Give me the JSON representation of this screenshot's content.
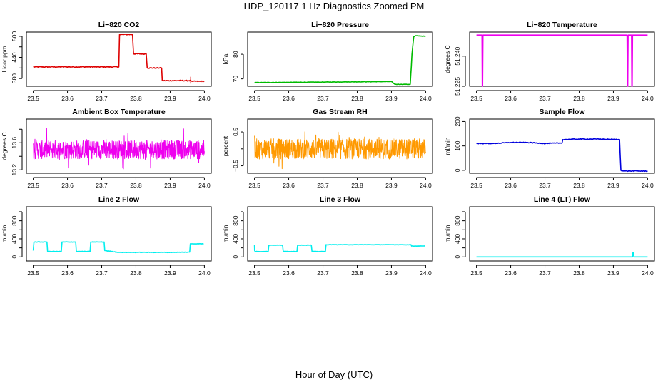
{
  "page": {
    "title": "HDP_120117  1 Hz Diagnostics Zoomed PM",
    "xlabel": "Hour of Day (UTC)"
  },
  "chart_data": [
    {
      "type": "line",
      "title": "Li−820 CO2",
      "ylabel": "Licor ppm",
      "color": "#dd0000",
      "xlim": [
        23.5,
        24.0
      ],
      "ylim": [
        358,
        512
      ],
      "xticks": [
        23.5,
        23.6,
        23.7,
        23.8,
        23.9,
        24.0
      ],
      "xtick_labels": [
        "23.5",
        "23.6",
        "23.7",
        "23.8",
        "23.9",
        "24.0"
      ],
      "yticks": [
        380,
        440,
        500
      ],
      "ytick_labels": [
        "380",
        "440",
        "500"
      ],
      "yticks_minor": [
        410,
        470
      ],
      "series": [
        {
          "x": [
            23.5,
            23.75,
            23.752,
            23.79,
            23.793,
            23.83,
            23.833,
            23.875,
            23.877,
            23.96,
            23.965,
            24.0
          ],
          "y": [
            413,
            413,
            505,
            505,
            450,
            450,
            410,
            410,
            374,
            374,
            372,
            372
          ],
          "noise": 1.2,
          "spikes": [
            {
              "x": 23.96,
              "y": 385
            }
          ]
        }
      ]
    },
    {
      "type": "line",
      "title": "Li−820 Pressure",
      "ylabel": "kPa",
      "color": "#00bb00",
      "xlim": [
        23.5,
        24.0
      ],
      "ylim": [
        67,
        89
      ],
      "xticks": [
        23.5,
        23.6,
        23.7,
        23.8,
        23.9,
        24.0
      ],
      "xtick_labels": [
        "23.5",
        "23.6",
        "23.7",
        "23.8",
        "23.9",
        "24.0"
      ],
      "yticks": [
        70,
        80
      ],
      "ytick_labels": [
        "70",
        "80"
      ],
      "series": [
        {
          "x": [
            23.5,
            23.9,
            23.91,
            23.955,
            23.958,
            23.96,
            23.965,
            23.97,
            24.0
          ],
          "y": [
            68.5,
            68.9,
            67.8,
            67.8,
            75,
            80,
            87,
            87.5,
            87.3
          ],
          "noise": 0.08
        }
      ]
    },
    {
      "type": "line",
      "title": "Li−820 Temperature",
      "ylabel": "degrees C",
      "color": "#ee00ee",
      "xlim": [
        23.5,
        24.0
      ],
      "ylim": [
        51.225,
        51.252
      ],
      "xticks": [
        23.5,
        23.6,
        23.7,
        23.8,
        23.9,
        24.0
      ],
      "xtick_labels": [
        "23.5",
        "23.6",
        "23.7",
        "23.8",
        "23.9",
        "24.0"
      ],
      "yticks": [
        51.225,
        51.24
      ],
      "ytick_labels": [
        "51.225",
        "51.240"
      ],
      "series": [
        {
          "x": [
            23.5,
            23.516,
            23.517,
            23.518,
            23.519,
            23.94,
            23.941,
            23.942,
            23.943,
            23.953,
            23.954,
            23.955,
            23.956,
            24.0
          ],
          "y": [
            51.2505,
            51.2505,
            51.225,
            51.225,
            51.2505,
            51.2505,
            51.225,
            51.225,
            51.2505,
            51.2505,
            51.225,
            51.225,
            51.2505,
            51.2505
          ],
          "noise": 0
        }
      ]
    },
    {
      "type": "line",
      "title": "Ambient Box Temperature",
      "ylabel": "degrees C",
      "color": "#ee00ee",
      "xlim": [
        23.5,
        24.0
      ],
      "ylim": [
        13.15,
        13.95
      ],
      "xticks": [
        23.5,
        23.6,
        23.7,
        23.8,
        23.9,
        24.0
      ],
      "xtick_labels": [
        "23.5",
        "23.6",
        "23.7",
        "23.8",
        "23.9",
        "24.0"
      ],
      "yticks": [
        13.2,
        13.6
      ],
      "ytick_labels": [
        "13.2",
        "13.6"
      ],
      "yticks_minor": [
        13.4,
        13.8
      ],
      "series": [
        {
          "x": [
            23.5,
            24.0
          ],
          "y": [
            13.5,
            13.5
          ],
          "noise": 0.14,
          "dense": true
        }
      ]
    },
    {
      "type": "line",
      "title": "Gas Stream RH",
      "ylabel": "percent",
      "color": "#ff9900",
      "xlim": [
        23.5,
        24.0
      ],
      "ylim": [
        -0.72,
        0.88
      ],
      "xticks": [
        23.5,
        23.6,
        23.7,
        23.8,
        23.9,
        24.0
      ],
      "xtick_labels": [
        "23.5",
        "23.6",
        "23.7",
        "23.8",
        "23.9",
        "24.0"
      ],
      "yticks": [
        -0.5,
        0.5
      ],
      "ytick_labels": [
        "−0.5",
        "0.5"
      ],
      "yticks_minor": [
        0.0
      ],
      "series": [
        {
          "x": [
            23.5,
            24.0
          ],
          "y": [
            0.0,
            0.0
          ],
          "noise": 0.3,
          "dense": true
        }
      ]
    },
    {
      "type": "line",
      "title": "Sample Flow",
      "ylabel": "ml/min",
      "color": "#0000dd",
      "xlim": [
        23.5,
        24.0
      ],
      "ylim": [
        -12,
        210
      ],
      "xticks": [
        23.5,
        23.6,
        23.7,
        23.8,
        23.9,
        24.0
      ],
      "xtick_labels": [
        "23.5",
        "23.6",
        "23.7",
        "23.8",
        "23.9",
        "24.0"
      ],
      "yticks": [
        0,
        100,
        200
      ],
      "ytick_labels": [
        "0",
        "100",
        "200"
      ],
      "series": [
        {
          "x": [
            23.5,
            23.55,
            23.6,
            23.65,
            23.7,
            23.75,
            23.752,
            23.8,
            23.85,
            23.918,
            23.922,
            23.93,
            24.0
          ],
          "y": [
            110,
            110,
            114,
            114,
            110,
            112,
            126,
            128,
            128,
            126,
            0,
            -3,
            -3
          ],
          "noise": 1.5
        }
      ]
    },
    {
      "type": "line",
      "title": "Line 2 Flow",
      "ylabel": "ml/min",
      "color": "#00eeee",
      "xlim": [
        23.5,
        24.0
      ],
      "ylim": [
        -90,
        1110
      ],
      "xticks": [
        23.5,
        23.6,
        23.7,
        23.8,
        23.9,
        24.0
      ],
      "xtick_labels": [
        "23.5",
        "23.6",
        "23.7",
        "23.8",
        "23.9",
        "24.0"
      ],
      "yticks": [
        0,
        400,
        800
      ],
      "ytick_labels": [
        "0",
        "400",
        "800"
      ],
      "yticks_minor": [
        200,
        600,
        1000
      ],
      "series": [
        {
          "x": [
            23.5,
            23.502,
            23.54,
            23.542,
            23.582,
            23.584,
            23.624,
            23.626,
            23.666,
            23.668,
            23.707,
            23.709,
            23.75,
            23.8,
            23.85,
            23.9,
            23.957,
            23.959,
            23.998
          ],
          "y": [
            140,
            330,
            330,
            120,
            120,
            330,
            330,
            120,
            120,
            330,
            330,
            140,
            100,
            100,
            100,
            100,
            105,
            290,
            290
          ],
          "noise": 5
        }
      ]
    },
    {
      "type": "line",
      "title": "Line 3 Flow",
      "ylabel": "ml/min",
      "color": "#00eeee",
      "xlim": [
        23.5,
        24.0
      ],
      "ylim": [
        -90,
        1110
      ],
      "xticks": [
        23.5,
        23.6,
        23.7,
        23.8,
        23.9,
        24.0
      ],
      "xtick_labels": [
        "23.5",
        "23.6",
        "23.7",
        "23.8",
        "23.9",
        "24.0"
      ],
      "yticks": [
        0,
        400,
        800
      ],
      "ytick_labels": [
        "0",
        "400",
        "800"
      ],
      "yticks_minor": [
        200,
        600,
        1000
      ],
      "series": [
        {
          "x": [
            23.5,
            23.5005,
            23.502,
            23.54,
            23.542,
            23.582,
            23.584,
            23.624,
            23.626,
            23.666,
            23.668,
            23.707,
            23.709,
            23.8,
            23.9,
            23.957,
            23.959,
            23.998
          ],
          "y": [
            260,
            140,
            120,
            120,
            260,
            260,
            120,
            120,
            260,
            260,
            120,
            120,
            270,
            270,
            270,
            270,
            240,
            240
          ],
          "noise": 4
        }
      ]
    },
    {
      "type": "line",
      "title": "Line 4 (LT) Flow",
      "ylabel": "ml/min",
      "color": "#00eeee",
      "xlim": [
        23.5,
        24.0
      ],
      "ylim": [
        -90,
        1110
      ],
      "xticks": [
        23.5,
        23.6,
        23.7,
        23.8,
        23.9,
        24.0
      ],
      "xtick_labels": [
        "23.5",
        "23.6",
        "23.7",
        "23.8",
        "23.9",
        "24.0"
      ],
      "yticks": [
        0,
        400,
        800
      ],
      "ytick_labels": [
        "0",
        "400",
        "800"
      ],
      "yticks_minor": [
        200,
        600,
        1000
      ],
      "series": [
        {
          "x": [
            23.5,
            23.956,
            23.957,
            23.958,
            23.959,
            23.96,
            23.961,
            24.0
          ],
          "y": [
            0,
            0,
            90,
            40,
            100,
            10,
            0,
            0
          ],
          "noise": 0
        }
      ]
    }
  ]
}
